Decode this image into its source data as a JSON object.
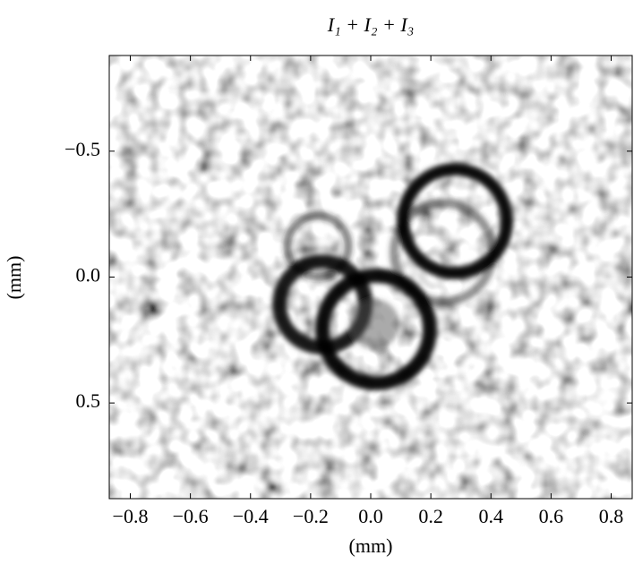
{
  "chart_data": {
    "type": "image",
    "title": "I₁ + I₂ + I₃",
    "x_label": "(mm)",
    "y_label": "(mm)",
    "xlim": [
      -0.87,
      0.87
    ],
    "ylim": [
      -0.88,
      0.88
    ],
    "y_reversed": true,
    "xticks": [
      {
        "value": -0.8,
        "label": "−0.8"
      },
      {
        "value": -0.6,
        "label": "−0.6"
      },
      {
        "value": -0.4,
        "label": "−0.4"
      },
      {
        "value": -0.2,
        "label": "−0.2"
      },
      {
        "value": 0,
        "label": "0.0"
      },
      0.2,
      0.4,
      0.6,
      0.8
    ],
    "yticks": [
      {
        "value": -0.5,
        "label": "−0.5"
      },
      {
        "value": 0,
        "label": "0.0"
      },
      0.5
    ]
  }
}
